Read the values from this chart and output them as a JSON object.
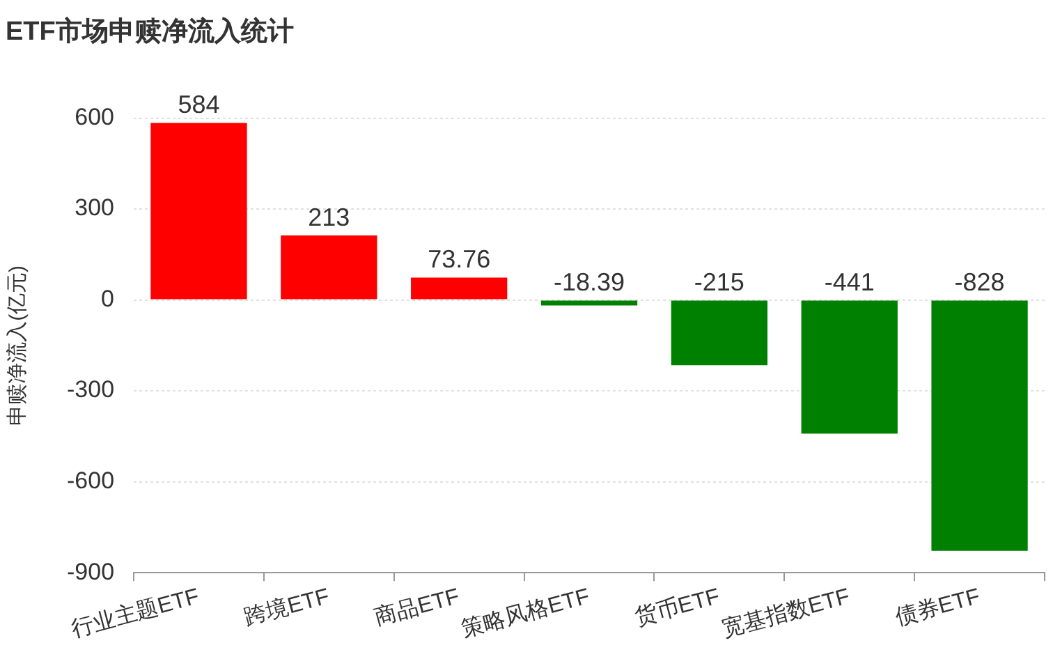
{
  "chart_data": {
    "type": "bar",
    "title": "ETF市场申赎净流入统计",
    "ylabel": "申赎净流入(亿元)",
    "categories": [
      "行业主题ETF",
      "跨境ETF",
      "商品ETF",
      "策略风格ETF",
      "货币ETF",
      "宽基指数ETF",
      "债券ETF"
    ],
    "values": [
      584,
      213,
      73.76,
      -18.39,
      -215,
      -441,
      -828
    ],
    "colors": [
      "#ff0000",
      "#ff0000",
      "#ff0000",
      "#008000",
      "#008000",
      "#008000",
      "#008000"
    ],
    "ylim": [
      -900,
      600
    ],
    "yticks": [
      -900,
      -600,
      -300,
      0,
      300,
      600
    ],
    "grid": "y",
    "data_labels": true,
    "legend": false
  }
}
